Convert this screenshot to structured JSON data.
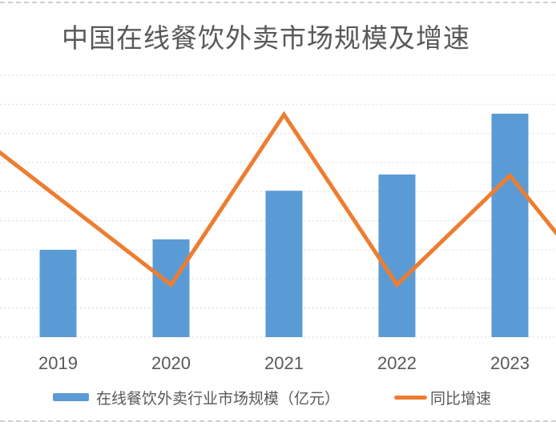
{
  "page": {
    "title": "中国在线餐饮外卖市场规模及增速",
    "top_border_dashed": true,
    "bottom_border_dashed": true
  },
  "chart": {
    "title": "中国在线餐饮外卖市场规模及增速",
    "legend": {
      "market_size_label": "在线餐饮外卖行业市场规模（亿元）",
      "growth_label": "同比增速"
    }
  },
  "colors": {
    "bar": "#5B9BD5",
    "line": "#ED7D31",
    "gridline": "#D9D9D9",
    "text": "#595959",
    "page_border": "#CFCFCF"
  },
  "chart_data": {
    "type": "combo_bar_line",
    "title": "中国在线餐饮外卖市场规模及增速",
    "categories": [
      "2019",
      "2020",
      "2021",
      "2022",
      "2023"
    ],
    "series": [
      {
        "name": "在线餐饮外卖行业市场规模（亿元）",
        "type": "bar",
        "axis": "left",
        "values": [
          3000,
          3360,
          5030,
          5590,
          7680
        ]
      },
      {
        "name": "同比增速",
        "type": "line",
        "axis": "right",
        "unit": "%",
        "values": [
          32,
          12,
          51,
          12,
          37
        ]
      }
    ],
    "line_offscreen_extension": {
      "prev_year_value_pct": 52,
      "next_year_value_pct": 5
    },
    "left_axis": {
      "min": 0,
      "max": 9000,
      "step": 1000,
      "tick_labels_visible": false
    },
    "right_axis": {
      "min": 0,
      "max": 60,
      "tick_labels_visible": false
    },
    "grid": "horizontal dotted gridlines (10), axis tick labels cropped out of frame",
    "legend_position": "bottom"
  }
}
